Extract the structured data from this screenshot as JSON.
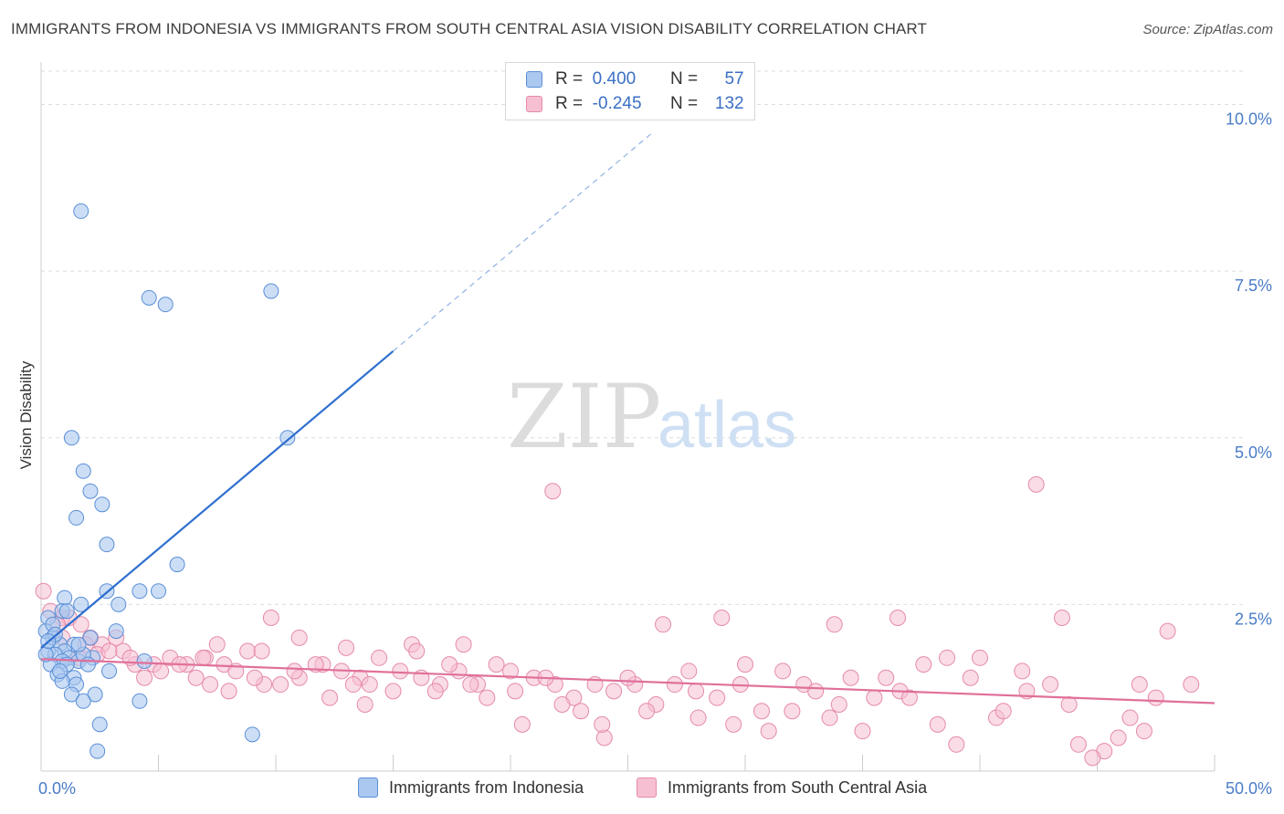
{
  "title": "IMMIGRANTS FROM INDONESIA VS IMMIGRANTS FROM SOUTH CENTRAL ASIA VISION DISABILITY CORRELATION CHART",
  "source": "Source: ZipAtlas.com",
  "watermark": {
    "zip": "ZIP",
    "atlas": "atlas"
  },
  "colors": {
    "blue_fill": "#aac8f0",
    "blue_stroke": "#5a8fd6",
    "blue_line": "#2f6fcf",
    "pink_fill": "#f6c0d2",
    "pink_stroke": "#e58aaa",
    "pink_line": "#e0709a",
    "grid": "#dddddd",
    "tick_text": "#4a7cc7"
  },
  "legend": {
    "rows": [
      {
        "r_label": "R =",
        "r_value": "0.400",
        "n_label": "N =",
        "n_value": "57"
      },
      {
        "r_label": "R =",
        "r_value": "-0.245",
        "n_label": "N =",
        "n_value": "132"
      }
    ]
  },
  "bottom_legend": [
    "Immigrants from Indonesia",
    "Immigrants from South Central Asia"
  ],
  "chart_data": {
    "type": "scatter",
    "xlabel": "",
    "ylabel": "Vision Disability",
    "xlim": [
      0,
      50
    ],
    "ylim": [
      0,
      10.5
    ],
    "x_tick_labels": [
      "0.0%",
      "50.0%"
    ],
    "y_ticks": [
      2.5,
      5.0,
      7.5,
      10.0
    ],
    "y_tick_labels": [
      "2.5%",
      "5.0%",
      "7.5%",
      "10.0%"
    ],
    "grid": true,
    "series": [
      {
        "name": "Immigrants from Indonesia",
        "trend": {
          "x0": 0,
          "y0": 1.85,
          "x1": 15,
          "y1": 6.3,
          "dashed_to_x": 26
        },
        "points": [
          [
            1.7,
            8.4
          ],
          [
            4.6,
            7.1
          ],
          [
            5.3,
            7.0
          ],
          [
            9.8,
            7.2
          ],
          [
            10.5,
            5.0
          ],
          [
            1.3,
            5.0
          ],
          [
            1.8,
            4.5
          ],
          [
            2.1,
            4.2
          ],
          [
            2.6,
            4.0
          ],
          [
            1.5,
            3.8
          ],
          [
            2.8,
            3.4
          ],
          [
            5.8,
            3.1
          ],
          [
            2.8,
            2.7
          ],
          [
            4.2,
            2.7
          ],
          [
            5.0,
            2.7
          ],
          [
            1.0,
            2.6
          ],
          [
            3.3,
            2.5
          ],
          [
            1.7,
            2.5
          ],
          [
            0.9,
            2.4
          ],
          [
            0.3,
            2.3
          ],
          [
            0.2,
            2.1
          ],
          [
            0.5,
            2.0
          ],
          [
            0.8,
            1.9
          ],
          [
            1.4,
            1.9
          ],
          [
            0.3,
            1.8
          ],
          [
            1.0,
            1.8
          ],
          [
            0.6,
            1.75
          ],
          [
            1.2,
            1.7
          ],
          [
            0.9,
            1.65
          ],
          [
            1.6,
            1.65
          ],
          [
            0.4,
            1.6
          ],
          [
            1.1,
            1.6
          ],
          [
            2.2,
            1.7
          ],
          [
            2.9,
            1.5
          ],
          [
            0.7,
            1.45
          ],
          [
            1.4,
            1.4
          ],
          [
            1.5,
            1.3
          ],
          [
            0.9,
            1.35
          ],
          [
            1.3,
            1.15
          ],
          [
            2.3,
            1.15
          ],
          [
            1.8,
            1.05
          ],
          [
            4.2,
            1.05
          ],
          [
            2.5,
            0.7
          ],
          [
            9.0,
            0.55
          ],
          [
            2.4,
            0.3
          ],
          [
            3.2,
            2.1
          ],
          [
            0.5,
            2.2
          ],
          [
            1.8,
            1.75
          ],
          [
            0.2,
            1.75
          ],
          [
            0.6,
            2.05
          ],
          [
            2.1,
            2.0
          ],
          [
            1.1,
            2.4
          ],
          [
            0.3,
            1.95
          ],
          [
            0.8,
            1.5
          ],
          [
            1.6,
            1.9
          ],
          [
            2.0,
            1.6
          ],
          [
            4.4,
            1.65
          ]
        ]
      },
      {
        "name": "Immigrants from South Central Asia",
        "trend": {
          "x0": 0,
          "y0": 1.68,
          "x1": 50,
          "y1": 1.02
        },
        "points": [
          [
            0.1,
            2.7
          ],
          [
            0.4,
            2.4
          ],
          [
            0.9,
            2.3
          ],
          [
            1.2,
            2.3
          ],
          [
            1.7,
            2.2
          ],
          [
            0.7,
            2.2
          ],
          [
            2.1,
            2.0
          ],
          [
            2.6,
            1.9
          ],
          [
            3.5,
            1.8
          ],
          [
            4.8,
            1.6
          ],
          [
            5.5,
            1.7
          ],
          [
            6.2,
            1.6
          ],
          [
            7.0,
            1.7
          ],
          [
            7.8,
            1.6
          ],
          [
            8.8,
            1.8
          ],
          [
            9.5,
            1.3
          ],
          [
            10.2,
            1.3
          ],
          [
            11.0,
            1.4
          ],
          [
            12.0,
            1.6
          ],
          [
            12.8,
            1.5
          ],
          [
            13.6,
            1.4
          ],
          [
            14.4,
            1.7
          ],
          [
            15.3,
            1.5
          ],
          [
            16.2,
            1.4
          ],
          [
            17.0,
            1.3
          ],
          [
            17.8,
            1.5
          ],
          [
            18.6,
            1.3
          ],
          [
            19.4,
            1.6
          ],
          [
            20.2,
            1.2
          ],
          [
            21.0,
            1.4
          ],
          [
            21.9,
            1.3
          ],
          [
            22.7,
            1.1
          ],
          [
            23.6,
            1.3
          ],
          [
            24.4,
            1.2
          ],
          [
            25.3,
            1.3
          ],
          [
            26.2,
            1.0
          ],
          [
            27.0,
            1.3
          ],
          [
            27.9,
            1.2
          ],
          [
            28.8,
            1.1
          ],
          [
            29.8,
            1.3
          ],
          [
            30.7,
            0.9
          ],
          [
            31.6,
            1.5
          ],
          [
            32.5,
            1.3
          ],
          [
            33.6,
            0.8
          ],
          [
            34.5,
            1.4
          ],
          [
            35.5,
            1.1
          ],
          [
            36.6,
            1.2
          ],
          [
            37.6,
            1.6
          ],
          [
            38.6,
            1.7
          ],
          [
            39.6,
            1.4
          ],
          [
            40.7,
            0.8
          ],
          [
            41.8,
            1.5
          ],
          [
            43.0,
            1.3
          ],
          [
            44.2,
            0.4
          ],
          [
            45.3,
            0.3
          ],
          [
            46.4,
            0.8
          ],
          [
            47.5,
            1.1
          ],
          [
            21.8,
            4.2
          ],
          [
            42.4,
            4.3
          ],
          [
            48.0,
            2.1
          ],
          [
            43.5,
            2.3
          ],
          [
            36.5,
            2.3
          ],
          [
            26.5,
            2.2
          ],
          [
            29.0,
            2.3
          ],
          [
            33.8,
            2.2
          ],
          [
            11.0,
            2.0
          ],
          [
            13.0,
            1.85
          ],
          [
            15.8,
            1.9
          ],
          [
            9.8,
            2.3
          ],
          [
            7.5,
            1.9
          ],
          [
            3.2,
            2.0
          ],
          [
            4.0,
            1.6
          ],
          [
            5.9,
            1.6
          ],
          [
            1.6,
            1.7
          ],
          [
            2.4,
            1.75
          ],
          [
            8.3,
            1.5
          ],
          [
            6.6,
            1.4
          ],
          [
            13.3,
            1.3
          ],
          [
            16.8,
            1.2
          ],
          [
            19.0,
            1.1
          ],
          [
            23.0,
            0.9
          ],
          [
            25.8,
            0.9
          ],
          [
            28.0,
            0.8
          ],
          [
            32.0,
            0.9
          ],
          [
            35.0,
            0.6
          ],
          [
            39.0,
            0.4
          ],
          [
            44.8,
            0.2
          ],
          [
            38.2,
            0.7
          ],
          [
            20.5,
            0.7
          ],
          [
            24.0,
            0.5
          ],
          [
            31.0,
            0.6
          ],
          [
            47.0,
            0.6
          ],
          [
            18.0,
            1.9
          ],
          [
            21.5,
            1.4
          ],
          [
            27.6,
            1.5
          ],
          [
            30.0,
            1.6
          ],
          [
            33.0,
            1.2
          ],
          [
            37.0,
            1.1
          ],
          [
            41.0,
            0.9
          ],
          [
            45.9,
            0.5
          ],
          [
            14.0,
            1.3
          ],
          [
            12.3,
            1.1
          ],
          [
            10.8,
            1.5
          ],
          [
            9.1,
            1.4
          ],
          [
            7.2,
            1.3
          ],
          [
            5.1,
            1.5
          ],
          [
            3.8,
            1.7
          ],
          [
            2.9,
            1.8
          ],
          [
            1.9,
            1.9
          ],
          [
            0.9,
            2.0
          ],
          [
            4.4,
            1.4
          ],
          [
            6.9,
            1.7
          ],
          [
            8.0,
            1.2
          ],
          [
            16.0,
            1.8
          ],
          [
            18.3,
            1.3
          ],
          [
            22.2,
            1.0
          ],
          [
            25.0,
            1.4
          ],
          [
            29.5,
            0.7
          ],
          [
            34.0,
            1.0
          ],
          [
            36.0,
            1.4
          ],
          [
            40.0,
            1.7
          ],
          [
            42.0,
            1.2
          ],
          [
            43.8,
            1.0
          ],
          [
            46.8,
            1.3
          ],
          [
            49.0,
            1.3
          ],
          [
            17.4,
            1.6
          ],
          [
            15.0,
            1.2
          ],
          [
            11.7,
            1.6
          ],
          [
            9.4,
            1.8
          ],
          [
            13.8,
            1.0
          ],
          [
            20.0,
            1.5
          ],
          [
            23.9,
            0.7
          ]
        ]
      }
    ]
  }
}
